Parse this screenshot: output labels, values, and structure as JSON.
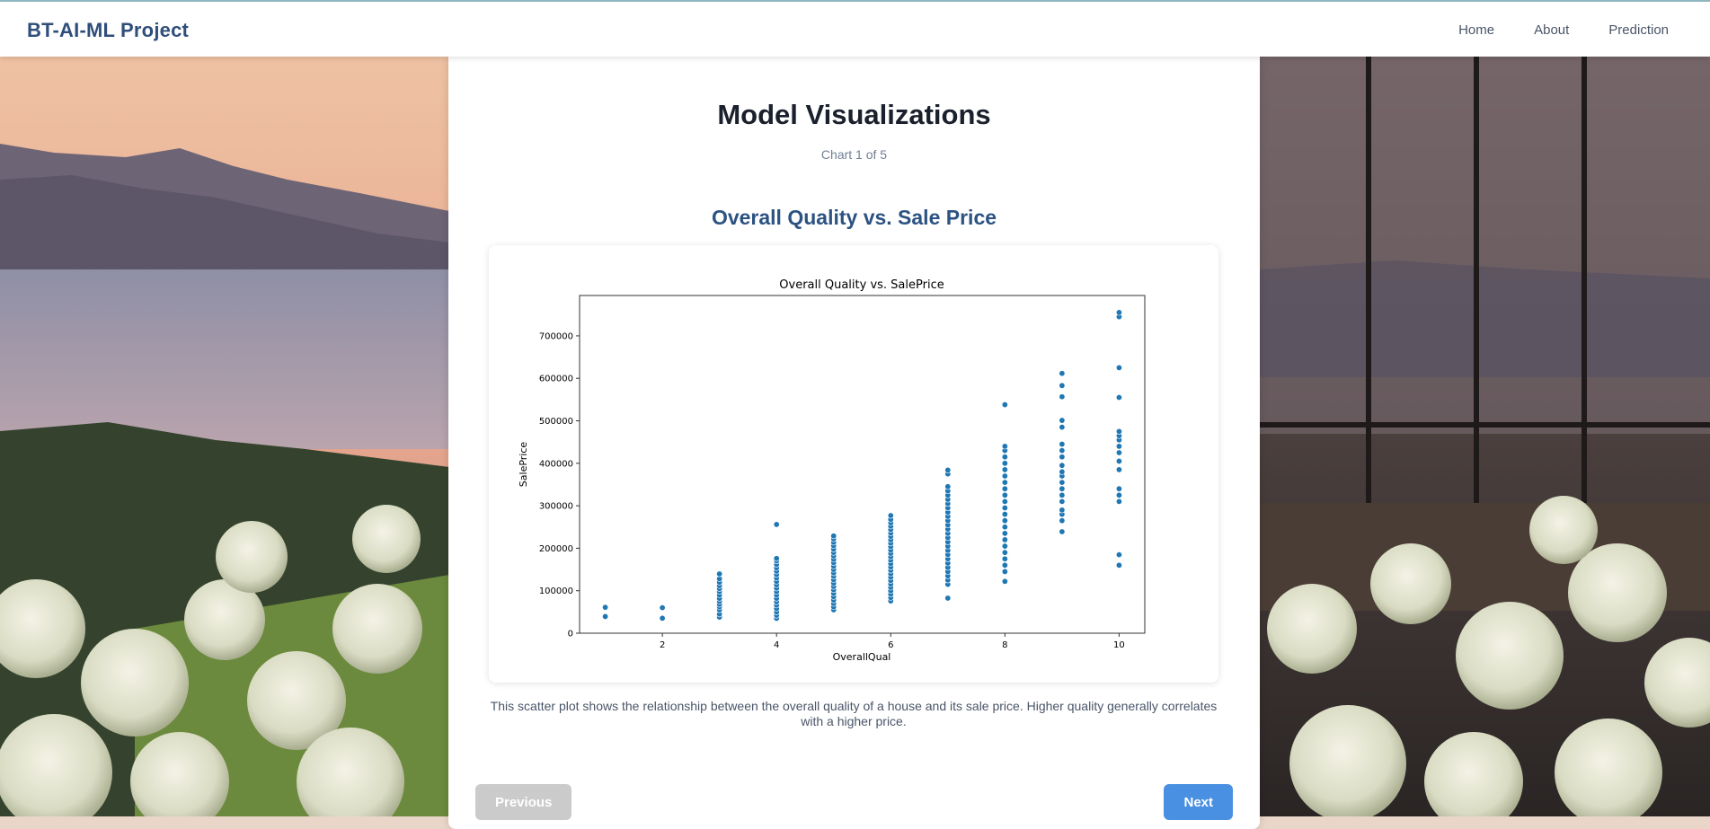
{
  "app": {
    "brand": "BT-AI-ML Project",
    "nav": [
      "Home",
      "About",
      "Prediction"
    ]
  },
  "page": {
    "title": "Model Visualizations",
    "counter": "Chart 1 of 5",
    "chart_heading": "Overall Quality vs. Sale Price",
    "caption": "This scatter plot shows the relationship between the overall quality of a house and its sale price. Higher quality generally correlates with a higher price.",
    "prev_label": "Previous",
    "next_label": "Next"
  },
  "colors": {
    "brand": "#2f4f7a",
    "accent": "#4a90e2",
    "disabled": "#cbcbcb",
    "point": "#1f77b4"
  },
  "chart_data": {
    "type": "scatter",
    "title": "Overall Quality vs. SalePrice",
    "xlabel": "OverallQual",
    "ylabel": "SalePrice",
    "xlim": [
      0.55,
      10.45
    ],
    "ylim": [
      0,
      795000
    ],
    "xticks": [
      2,
      4,
      6,
      8,
      10
    ],
    "yticks": [
      0,
      100000,
      200000,
      300000,
      400000,
      500000,
      600000,
      700000
    ],
    "grid": false,
    "series": [
      {
        "points": [
          [
            1,
            39300
          ],
          [
            1,
            61000
          ],
          [
            2,
            35311
          ],
          [
            2,
            60000
          ],
          [
            3,
            37900
          ],
          [
            3,
            45000
          ],
          [
            3,
            55000
          ],
          [
            3,
            62000
          ],
          [
            3,
            68000
          ],
          [
            3,
            75000
          ],
          [
            3,
            82000
          ],
          [
            3,
            90000
          ],
          [
            3,
            98000
          ],
          [
            3,
            105000
          ],
          [
            3,
            112000
          ],
          [
            3,
            120000
          ],
          [
            3,
            128000
          ],
          [
            3,
            139600
          ],
          [
            4,
            34900
          ],
          [
            4,
            42000
          ],
          [
            4,
            50000
          ],
          [
            4,
            58000
          ],
          [
            4,
            66000
          ],
          [
            4,
            74000
          ],
          [
            4,
            82000
          ],
          [
            4,
            90000
          ],
          [
            4,
            98000
          ],
          [
            4,
            106000
          ],
          [
            4,
            114000
          ],
          [
            4,
            122000
          ],
          [
            4,
            130000
          ],
          [
            4,
            138000
          ],
          [
            4,
            146000
          ],
          [
            4,
            154000
          ],
          [
            4,
            162000
          ],
          [
            4,
            170000
          ],
          [
            4,
            176000
          ],
          [
            4,
            256000
          ],
          [
            5,
            55000
          ],
          [
            5,
            62000
          ],
          [
            5,
            70000
          ],
          [
            5,
            78000
          ],
          [
            5,
            86000
          ],
          [
            5,
            94000
          ],
          [
            5,
            102000
          ],
          [
            5,
            110000
          ],
          [
            5,
            118000
          ],
          [
            5,
            126000
          ],
          [
            5,
            134000
          ],
          [
            5,
            142000
          ],
          [
            5,
            150000
          ],
          [
            5,
            158000
          ],
          [
            5,
            166000
          ],
          [
            5,
            174000
          ],
          [
            5,
            182000
          ],
          [
            5,
            190000
          ],
          [
            5,
            198000
          ],
          [
            5,
            206000
          ],
          [
            5,
            214000
          ],
          [
            5,
            222000
          ],
          [
            5,
            228950
          ],
          [
            6,
            76000
          ],
          [
            6,
            84000
          ],
          [
            6,
            92000
          ],
          [
            6,
            100000
          ],
          [
            6,
            108000
          ],
          [
            6,
            116000
          ],
          [
            6,
            124000
          ],
          [
            6,
            132000
          ],
          [
            6,
            140000
          ],
          [
            6,
            148000
          ],
          [
            6,
            156000
          ],
          [
            6,
            164000
          ],
          [
            6,
            172000
          ],
          [
            6,
            180000
          ],
          [
            6,
            188000
          ],
          [
            6,
            196000
          ],
          [
            6,
            204000
          ],
          [
            6,
            212000
          ],
          [
            6,
            220000
          ],
          [
            6,
            228000
          ],
          [
            6,
            236000
          ],
          [
            6,
            244000
          ],
          [
            6,
            252000
          ],
          [
            6,
            260000
          ],
          [
            6,
            268000
          ],
          [
            6,
            277000
          ],
          [
            7,
            82500
          ],
          [
            7,
            115000
          ],
          [
            7,
            125000
          ],
          [
            7,
            135000
          ],
          [
            7,
            145000
          ],
          [
            7,
            155000
          ],
          [
            7,
            165000
          ],
          [
            7,
            175000
          ],
          [
            7,
            185000
          ],
          [
            7,
            195000
          ],
          [
            7,
            205000
          ],
          [
            7,
            215000
          ],
          [
            7,
            225000
          ],
          [
            7,
            235000
          ],
          [
            7,
            245000
          ],
          [
            7,
            255000
          ],
          [
            7,
            265000
          ],
          [
            7,
            275000
          ],
          [
            7,
            285000
          ],
          [
            7,
            295000
          ],
          [
            7,
            305000
          ],
          [
            7,
            315000
          ],
          [
            7,
            325000
          ],
          [
            7,
            335000
          ],
          [
            7,
            345000
          ],
          [
            7,
            375000
          ],
          [
            7,
            383970
          ],
          [
            8,
            122000
          ],
          [
            8,
            145000
          ],
          [
            8,
            160000
          ],
          [
            8,
            175000
          ],
          [
            8,
            190000
          ],
          [
            8,
            205000
          ],
          [
            8,
            220000
          ],
          [
            8,
            235000
          ],
          [
            8,
            250000
          ],
          [
            8,
            265000
          ],
          [
            8,
            280000
          ],
          [
            8,
            295000
          ],
          [
            8,
            310000
          ],
          [
            8,
            325000
          ],
          [
            8,
            340000
          ],
          [
            8,
            355000
          ],
          [
            8,
            370000
          ],
          [
            8,
            385000
          ],
          [
            8,
            400000
          ],
          [
            8,
            415000
          ],
          [
            8,
            430000
          ],
          [
            8,
            440000
          ],
          [
            8,
            538000
          ],
          [
            9,
            239000
          ],
          [
            9,
            265000
          ],
          [
            9,
            280000
          ],
          [
            9,
            290000
          ],
          [
            9,
            310000
          ],
          [
            9,
            325000
          ],
          [
            9,
            340000
          ],
          [
            9,
            355000
          ],
          [
            9,
            370000
          ],
          [
            9,
            380000
          ],
          [
            9,
            395000
          ],
          [
            9,
            415000
          ],
          [
            9,
            430000
          ],
          [
            9,
            445000
          ],
          [
            9,
            485000
          ],
          [
            9,
            501000
          ],
          [
            9,
            556581
          ],
          [
            9,
            582933
          ],
          [
            9,
            611657
          ],
          [
            10,
            160000
          ],
          [
            10,
            184750
          ],
          [
            10,
            310000
          ],
          [
            10,
            325000
          ],
          [
            10,
            340000
          ],
          [
            10,
            385000
          ],
          [
            10,
            405000
          ],
          [
            10,
            425000
          ],
          [
            10,
            440000
          ],
          [
            10,
            455000
          ],
          [
            10,
            465000
          ],
          [
            10,
            475000
          ],
          [
            10,
            555000
          ],
          [
            10,
            625000
          ],
          [
            10,
            745000
          ],
          [
            10,
            755000
          ]
        ]
      }
    ]
  }
}
